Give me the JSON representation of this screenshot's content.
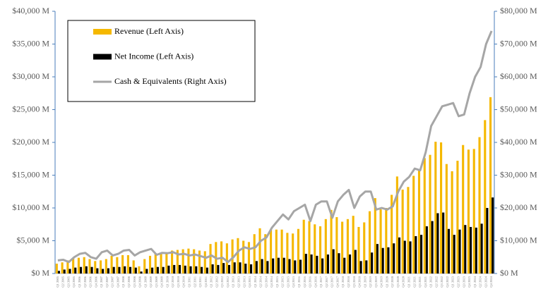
{
  "chart_data": {
    "type": "bar-line",
    "categories": [
      "Q1 2005",
      "Q2 2005",
      "Q3 2005",
      "Q4 2005",
      "Q1 2006",
      "Q2 2006",
      "Q3 2006",
      "Q4 2006",
      "Q1 2007",
      "Q2 2007",
      "Q3 2007",
      "Q4 2007",
      "Q1 2008",
      "Q2 2008",
      "Q3 2008",
      "Q4 2008",
      "Q1 2009",
      "Q2 2009",
      "Q3 2009",
      "Q4 2009",
      "Q1 2010",
      "Q2 2010",
      "Q3 2010",
      "Q4 2010",
      "Q1 2011",
      "Q2 2011",
      "Q3 2011",
      "Q4 2011",
      "Q1 2012",
      "Q2 2012",
      "Q3 2012",
      "Q4 2012",
      "Q1 2013",
      "Q2 2013",
      "Q3 2013",
      "Q4 2013",
      "Q1 2014",
      "Q2 2014",
      "Q3 2014",
      "Q4 2014",
      "Q1 2015",
      "Q2 2015",
      "Q3 2015",
      "Q4 2015",
      "Q1 2016",
      "Q2 2016",
      "Q3 2016",
      "Q4 2016",
      "Q1 2017",
      "Q2 2017",
      "Q3 2017",
      "Q4 2017",
      "Q1 2018",
      "Q2 2018",
      "Q3 2018",
      "Q4 2018",
      "Q1 2019",
      "Q2 2019",
      "Q3 2019",
      "Q4 2019",
      "Q1 2020",
      "Q2 2020",
      "Q3 2020",
      "Q4 2020",
      "Q1 2021",
      "Q2 2021",
      "Q3 2021",
      "Q4 2021",
      "Q1 2022",
      "Q2 2022",
      "Q3 2022",
      "Q4 2022",
      "Q1 2023",
      "Q2 2023",
      "Q3 2023",
      "Q4 2023",
      "Q1 2024",
      "Q2 2024",
      "Q3 2024",
      "Q4 2024"
    ],
    "series": [
      {
        "name": "Revenue (Left Axis)",
        "kind": "bar",
        "color": "#f5b800",
        "values": [
          1500,
          1700,
          2000,
          2300,
          2400,
          2500,
          2200,
          1900,
          2000,
          2200,
          2700,
          2500,
          2800,
          2800,
          2000,
          1100,
          2200,
          2700,
          3000,
          3000,
          3200,
          3500,
          3600,
          3700,
          3800,
          3700,
          3500,
          3400,
          4500,
          4800,
          4900,
          4600,
          5200,
          5400,
          5000,
          4800,
          6000,
          6900,
          6000,
          6800,
          6700,
          6700,
          6200,
          6100,
          6800,
          8200,
          8000,
          7500,
          7200,
          8300,
          9700,
          8600,
          7900,
          8300,
          8800,
          7100,
          7800,
          9500,
          11500,
          9800,
          10000,
          12000,
          14800,
          12800,
          13200,
          14900,
          15800,
          17600,
          18100,
          20100,
          20000,
          16700,
          15600,
          17200,
          19600,
          18900,
          19000,
          20800,
          23400,
          26900
        ]
      },
      {
        "name": "Net Income (Left Axis)",
        "kind": "bar",
        "color": "#000000",
        "values": [
          400,
          600,
          700,
          900,
          1000,
          1100,
          1000,
          800,
          700,
          800,
          1000,
          1000,
          1100,
          1000,
          900,
          300,
          700,
          900,
          1000,
          1000,
          1200,
          1300,
          1300,
          1200,
          1100,
          1100,
          1000,
          900,
          1400,
          1300,
          1600,
          1300,
          1700,
          1700,
          1500,
          1400,
          1900,
          2200,
          1900,
          2300,
          2400,
          2400,
          2200,
          2000,
          2100,
          3000,
          2900,
          2700,
          2300,
          2900,
          3700,
          3100,
          2400,
          2900,
          3600,
          1900,
          2000,
          3200,
          4500,
          3900,
          4000,
          4600,
          5500,
          5000,
          4900,
          5700,
          5900,
          7200,
          8000,
          9200,
          9300,
          6800,
          5900,
          6700,
          7400,
          7100,
          7000,
          7600,
          10000,
          11600
        ]
      },
      {
        "name": "Cash & Equivalents (Right Axis)",
        "kind": "line",
        "axis": "y2",
        "color": "#a6a6a6",
        "values": [
          4000,
          4200,
          3500,
          5000,
          6000,
          6300,
          5000,
          4500,
          6500,
          7000,
          5500,
          6000,
          7000,
          7200,
          5500,
          6500,
          7000,
          7500,
          5700,
          6300,
          6200,
          6500,
          5800,
          6000,
          5500,
          5800,
          5300,
          4800,
          5500,
          4500,
          4800,
          3500,
          5000,
          7000,
          8000,
          7500,
          8000,
          10000,
          11000,
          14000,
          16000,
          18000,
          16500,
          19000,
          20000,
          21000,
          16000,
          21000,
          22000,
          22000,
          17000,
          22000,
          24000,
          25500,
          20000,
          23500,
          25000,
          25000,
          19500,
          20000,
          19500,
          20500,
          25000,
          28000,
          29500,
          32000,
          31500,
          37000,
          45000,
          48000,
          51000,
          51500,
          52000,
          48000,
          48500,
          55000,
          60000,
          63000,
          70000,
          74000
        ]
      }
    ],
    "ylim": [
      0,
      40000
    ],
    "yticks": [
      {
        "value": 0,
        "label": "$0 M"
      },
      {
        "value": 5000,
        "label": "$5,000 M"
      },
      {
        "value": 10000,
        "label": "$10,000 M"
      },
      {
        "value": 15000,
        "label": "$15,000 M"
      },
      {
        "value": 20000,
        "label": "$20,000 M"
      },
      {
        "value": 25000,
        "label": "$25,000 M"
      },
      {
        "value": 30000,
        "label": "$30,000 M"
      },
      {
        "value": 35000,
        "label": "$35,000 M"
      },
      {
        "value": 40000,
        "label": "$40,000 M"
      }
    ],
    "y2lim": [
      0,
      80000
    ],
    "y2ticks": [
      {
        "value": 0,
        "label": "$0 M"
      },
      {
        "value": 10000,
        "label": "$10,000 M"
      },
      {
        "value": 20000,
        "label": "$20,000 M"
      },
      {
        "value": 30000,
        "label": "$30,000 M"
      },
      {
        "value": 40000,
        "label": "$40,000 M"
      },
      {
        "value": 50000,
        "label": "$50,000 M"
      },
      {
        "value": 60000,
        "label": "$60,000 M"
      },
      {
        "value": 70000,
        "label": "$70,000 M"
      },
      {
        "value": 80000,
        "label": "$80,000 M"
      }
    ],
    "grid": false,
    "legend": "upper left"
  }
}
